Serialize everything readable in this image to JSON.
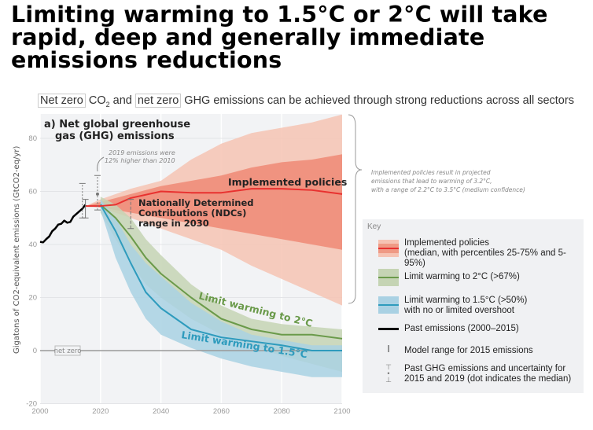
{
  "title": "Limiting warming to 1.5°C or 2°C will take rapid, deep and generally immediate emissions reductions",
  "subtitle": {
    "box1": "Net zero",
    "co2": "CO",
    "sub2": "2",
    "and": " and ",
    "box2": "net zero",
    "rest": " GHG emissions can be achieved through strong reductions across all sectors"
  },
  "colors": {
    "implemented": "#e8312f",
    "implemented_inner": "#ef8a75",
    "implemented_outer": "#f6c3b3",
    "two_c": "#6a9a4a",
    "two_c_band": "#c5d4b4",
    "one_five": "#2e9bbd",
    "one_five_band": "#a9d1e3",
    "past": "#000000",
    "background": "#f2f3f5"
  },
  "chart_data": {
    "type": "line",
    "panel_title": "a) Net global greenhouse gas (GHG) emissions",
    "ylabel": "Gigatons of CO2-equivalent emissions (GtCO2-eq/yr)",
    "xlim": [
      2000,
      2100
    ],
    "ylim": [
      -20,
      88
    ],
    "xticks": [
      "2000",
      "2020",
      "2040",
      "2060",
      "2080",
      "2100"
    ],
    "yticks": [
      "-20",
      "0",
      "20",
      "40",
      "60",
      "80"
    ],
    "grid": true,
    "net_zero_label": "net zero",
    "annotations": {
      "2019": "2019 emissions were 12% higher than 2010",
      "ndc": "Nationally Determined Contributions (NDCs) range in 2030",
      "brace": "Implemented policies result in projected emissions that lead to warming of 3.2°C, with a range of 2.2°C to 3.5°C (medium confidence)",
      "implemented_label": "Implemented policies",
      "two_c_label": "Limit warming to 2°C",
      "one_five_label": "Limit warming to 1.5°C"
    },
    "past": {
      "x": [
        2000,
        2001,
        2002,
        2003,
        2004,
        2005,
        2006,
        2007,
        2008,
        2009,
        2010,
        2011,
        2012,
        2013,
        2014,
        2015
      ],
      "y": [
        41,
        40.8,
        42,
        43,
        45,
        46,
        47.5,
        47.8,
        49,
        48.2,
        48.5,
        50.5,
        51.5,
        52.5,
        53.5,
        55
      ]
    },
    "implemented": {
      "x": [
        2015,
        2020,
        2025,
        2030,
        2040,
        2050,
        2060,
        2070,
        2080,
        2090,
        2100
      ],
      "median": [
        54.5,
        54.5,
        55,
        57.5,
        60,
        59.5,
        59.5,
        61,
        61,
        60.5,
        59
      ],
      "p25": [
        54.5,
        54,
        53,
        52,
        50,
        48,
        46,
        44,
        42,
        40,
        38
      ],
      "p75": [
        54.5,
        56,
        57.5,
        59,
        62,
        64,
        66,
        69,
        71,
        72,
        74
      ],
      "p5": [
        54.5,
        54,
        52,
        50,
        46,
        42,
        38,
        32,
        27,
        22,
        17
      ],
      "p95": [
        54.5,
        57,
        59,
        61,
        64,
        72,
        78,
        82,
        84,
        86,
        89
      ]
    },
    "two_c": {
      "x": [
        2020,
        2025,
        2030,
        2035,
        2040,
        2050,
        2060,
        2070,
        2080,
        2090,
        2100
      ],
      "median": [
        55,
        50,
        43,
        35,
        29,
        20,
        12,
        8,
        6,
        6,
        4.5
      ],
      "low": [
        52,
        42,
        33,
        25,
        20,
        12,
        6,
        2,
        -2,
        -5,
        -8
      ],
      "high": [
        58,
        55,
        50,
        42,
        36,
        25,
        17,
        12,
        10,
        9,
        8
      ]
    },
    "one_five": {
      "x": [
        2020,
        2025,
        2030,
        2035,
        2040,
        2050,
        2060,
        2070,
        2080,
        2090,
        2100
      ],
      "median": [
        55,
        45,
        33,
        22,
        16,
        8,
        5,
        3.5,
        2,
        0,
        0
      ],
      "low": [
        53,
        35,
        22,
        12,
        6,
        1,
        -3,
        -6,
        -8,
        -10,
        -10
      ],
      "high": [
        57,
        50,
        40,
        33,
        28,
        18,
        11,
        6,
        4,
        2,
        2
      ]
    },
    "model_range_2015": [
      50,
      57
    ],
    "uncertainty_2015": {
      "median": 55,
      "range": [
        50,
        63
      ]
    },
    "uncertainty_2019": {
      "median": 59,
      "range": [
        53,
        66
      ]
    },
    "ndc_range_2030": [
      46,
      57
    ]
  },
  "legend": {
    "title": "Key",
    "items": [
      "Implemented policies",
      "(median, with percentiles 25-75% and 5-95%)",
      "Limit warming to 2°C (>67%)",
      "Limit warming to 1.5°C (>50%)",
      "with no or limited overshoot",
      "Past emissions (2000–2015)",
      "Model range for 2015 emissions",
      "Past GHG emissions and uncertainty for",
      "2015 and 2019 (dot indicates the median)"
    ]
  }
}
